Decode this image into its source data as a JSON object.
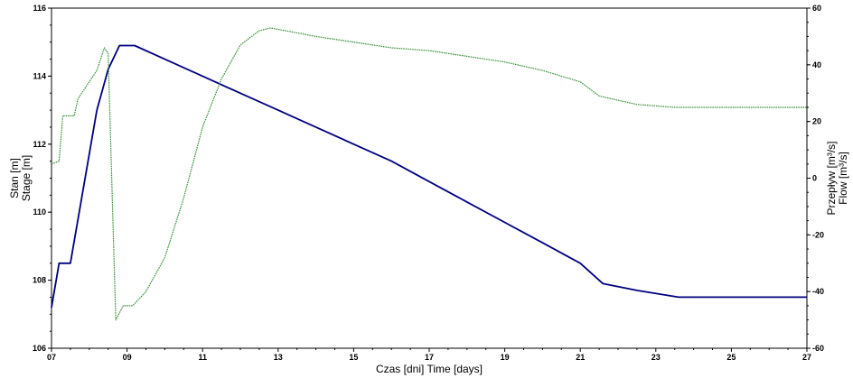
{
  "chart_data": {
    "type": "line",
    "xlabel": "Czas [dni]   Time [days]",
    "ylabel_left": [
      "Stan [m]",
      "Stage [m]"
    ],
    "ylabel_right": [
      "Przepływ [m³/s]",
      "Flow [m³/s]"
    ],
    "x_range": [
      7,
      27
    ],
    "x_ticks": [
      "07",
      "09",
      "11",
      "13",
      "15",
      "17",
      "19",
      "21",
      "23",
      "25",
      "27"
    ],
    "x_tick_values": [
      7,
      9,
      11,
      13,
      15,
      17,
      19,
      21,
      23,
      25,
      27
    ],
    "y_left_range": [
      106,
      116
    ],
    "y_left_ticks": [
      "106",
      "108",
      "110",
      "112",
      "114",
      "116"
    ],
    "y_right_range": [
      -60,
      60
    ],
    "y_right_ticks": [
      "-60",
      "-40",
      "-20",
      "0",
      "20",
      "40",
      "60"
    ],
    "grid": false,
    "series": [
      {
        "axis": "left",
        "color": "#000080",
        "points": [
          [
            7.0,
            107.2
          ],
          [
            7.2,
            108.5
          ],
          [
            7.5,
            108.5
          ],
          [
            8.2,
            113.0
          ],
          [
            8.5,
            114.2
          ],
          [
            8.8,
            114.9
          ],
          [
            9.2,
            114.9
          ],
          [
            10.0,
            114.5
          ],
          [
            11.0,
            114.0
          ],
          [
            12.0,
            113.5
          ],
          [
            13.0,
            113.0
          ],
          [
            14.0,
            112.5
          ],
          [
            15.0,
            112.0
          ],
          [
            16.0,
            111.5
          ],
          [
            17.0,
            110.9
          ],
          [
            18.0,
            110.3
          ],
          [
            19.0,
            109.7
          ],
          [
            20.0,
            109.1
          ],
          [
            21.0,
            108.5
          ],
          [
            21.6,
            107.9
          ],
          [
            22.5,
            107.7
          ],
          [
            23.6,
            107.5
          ],
          [
            27.0,
            107.5
          ]
        ]
      },
      {
        "axis": "right",
        "color": "#2E8B2E",
        "points": [
          [
            7.0,
            5
          ],
          [
            7.2,
            6
          ],
          [
            7.3,
            22
          ],
          [
            7.6,
            22
          ],
          [
            7.7,
            28
          ],
          [
            8.0,
            34
          ],
          [
            8.2,
            38
          ],
          [
            8.4,
            46
          ],
          [
            8.5,
            44
          ],
          [
            8.7,
            -50
          ],
          [
            8.9,
            -45
          ],
          [
            9.15,
            -45
          ],
          [
            9.5,
            -40
          ],
          [
            10.0,
            -28
          ],
          [
            10.5,
            -7
          ],
          [
            11.0,
            18
          ],
          [
            11.5,
            35
          ],
          [
            12.0,
            47
          ],
          [
            12.5,
            52
          ],
          [
            12.8,
            53
          ],
          [
            13.2,
            52
          ],
          [
            14.0,
            50
          ],
          [
            15.0,
            48
          ],
          [
            16.0,
            46
          ],
          [
            17.0,
            45
          ],
          [
            18.0,
            43
          ],
          [
            19.0,
            41
          ],
          [
            20.0,
            38
          ],
          [
            21.0,
            34
          ],
          [
            21.5,
            29
          ],
          [
            22.5,
            26
          ],
          [
            23.5,
            25
          ],
          [
            27.0,
            25
          ]
        ]
      }
    ]
  }
}
